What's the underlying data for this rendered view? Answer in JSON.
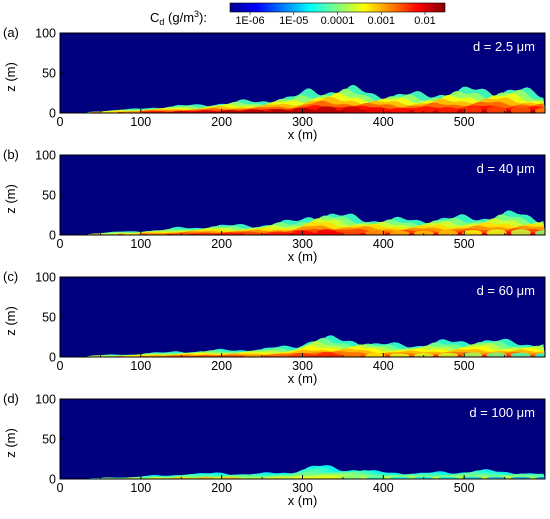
{
  "colorbar": {
    "label_main": "C",
    "label_sub": "d",
    "label_unit_pre": " (g/m",
    "label_unit_sup": "3",
    "label_unit_post": "):",
    "ticks": [
      "1E-06",
      "1E-05",
      "0.0001",
      "0.001",
      "0.01"
    ],
    "colors": [
      "#00008f",
      "#0000ff",
      "#0080ff",
      "#00ffff",
      "#80ff80",
      "#ffff00",
      "#ff8000",
      "#ff0000",
      "#800000"
    ]
  },
  "background_color": "#00007f",
  "chart_data": [
    {
      "type": "heatmap",
      "panel_label": "(a)",
      "annotation": "d = 2.5 μm",
      "xlabel": "x (m)",
      "ylabel": "z (m)",
      "xlim": [
        0,
        600
      ],
      "ylim": [
        0,
        100
      ],
      "x_ticks": [
        "0",
        "100",
        "200",
        "300",
        "400",
        "500"
      ],
      "y_ticks": [
        "0",
        "50",
        "100"
      ],
      "profile": {
        "x": [
          40,
          80,
          120,
          160,
          200,
          240,
          280,
          320,
          360,
          400,
          440,
          480,
          520,
          560,
          600
        ],
        "top_height": [
          2,
          4,
          7,
          9,
          12,
          14,
          18,
          28,
          28,
          22,
          22,
          25,
          28,
          28,
          22
        ],
        "intensity": [
          0.55,
          0.7,
          0.85,
          0.9,
          0.95,
          0.95,
          0.95,
          0.95,
          0.92,
          0.88,
          0.85,
          0.85,
          0.82,
          0.8,
          0.75
        ]
      }
    },
    {
      "type": "heatmap",
      "panel_label": "(b)",
      "annotation": "d = 40 μm",
      "xlabel": "x (m)",
      "ylabel": "z (m)",
      "xlim": [
        0,
        600
      ],
      "ylim": [
        0,
        100
      ],
      "x_ticks": [
        "0",
        "100",
        "200",
        "300",
        "400",
        "500"
      ],
      "y_ticks": [
        "0",
        "50",
        "100"
      ],
      "profile": {
        "x": [
          40,
          80,
          120,
          160,
          200,
          240,
          280,
          320,
          360,
          400,
          440,
          480,
          520,
          560,
          600
        ],
        "top_height": [
          2,
          4,
          6,
          9,
          11,
          12,
          15,
          25,
          22,
          18,
          18,
          20,
          22,
          25,
          20
        ],
        "intensity": [
          0.5,
          0.6,
          0.72,
          0.8,
          0.85,
          0.8,
          0.85,
          0.9,
          0.8,
          0.72,
          0.68,
          0.68,
          0.62,
          0.58,
          0.5
        ]
      }
    },
    {
      "type": "heatmap",
      "panel_label": "(c)",
      "annotation": "d = 60 μm",
      "xlabel": "x (m)",
      "ylabel": "z (m)",
      "xlim": [
        0,
        600
      ],
      "ylim": [
        0,
        100
      ],
      "x_ticks": [
        "0",
        "100",
        "200",
        "300",
        "400",
        "500"
      ],
      "y_ticks": [
        "0",
        "50",
        "100"
      ],
      "profile": {
        "x": [
          40,
          80,
          120,
          160,
          200,
          240,
          280,
          320,
          360,
          400,
          440,
          480,
          520,
          560,
          600
        ],
        "top_height": [
          2,
          3,
          5,
          7,
          8,
          9,
          12,
          22,
          20,
          15,
          15,
          18,
          20,
          18,
          15
        ],
        "intensity": [
          0.5,
          0.6,
          0.72,
          0.78,
          0.8,
          0.72,
          0.78,
          0.85,
          0.75,
          0.62,
          0.58,
          0.58,
          0.52,
          0.45,
          0.4
        ]
      }
    },
    {
      "type": "heatmap",
      "panel_label": "(d)",
      "annotation": "d = 100 μm",
      "xlabel": "x (m)",
      "ylabel": "z (m)",
      "xlim": [
        0,
        600
      ],
      "ylim": [
        0,
        100
      ],
      "x_ticks": [
        "0",
        "100",
        "200",
        "300",
        "400",
        "500"
      ],
      "y_ticks": [
        "0",
        "50",
        "100"
      ],
      "profile": {
        "x": [
          40,
          80,
          120,
          160,
          200,
          240,
          280,
          320,
          360,
          400,
          440,
          480,
          520,
          560,
          600
        ],
        "top_height": [
          1,
          2,
          4,
          6,
          7,
          6,
          8,
          15,
          12,
          8,
          7,
          8,
          10,
          8,
          6
        ],
        "intensity": [
          0.45,
          0.55,
          0.62,
          0.68,
          0.7,
          0.55,
          0.6,
          0.62,
          0.5,
          0.4,
          0.36,
          0.36,
          0.33,
          0.3,
          0.25
        ]
      }
    }
  ]
}
